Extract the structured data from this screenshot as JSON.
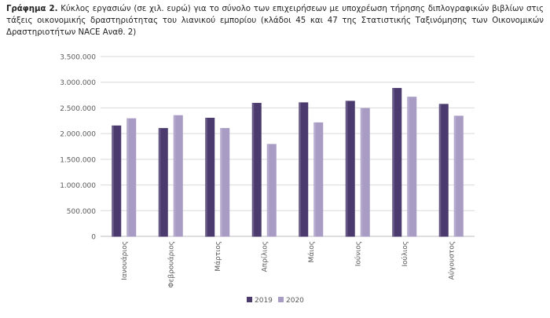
{
  "caption": {
    "label": "Γράφημα 2.",
    "text": "Κύκλος εργασιών (σε χιλ. ευρώ) για το σύνολο των επιχειρήσεων με υποχρέωση τήρησης διπλογραφικών βιβλίων στις τάξεις οικονομικής δραστηριότητας του λιανικού εμπορίου (κλάδοι 45 και 47 της Στατιστικής Ταξινόμησης των Οικονομικών Δραστηριοτήτων NACE Αναθ. 2)"
  },
  "chart_data": {
    "type": "bar",
    "categories": [
      "Ιανουάριος",
      "Φεβρουάριος",
      "Μάρτιος",
      "Απρίλιος",
      "Μάιος",
      "Ιούνιος",
      "Ιούλιος",
      "Αύγουστος"
    ],
    "series": [
      {
        "name": "2019",
        "color": "#4b3a6e",
        "values": [
          2150000,
          2100000,
          2300000,
          2590000,
          2600000,
          2630000,
          2880000,
          2570000
        ]
      },
      {
        "name": "2020",
        "color": "#a89bc4",
        "values": [
          2290000,
          2350000,
          2100000,
          1790000,
          2210000,
          2490000,
          2710000,
          2340000
        ]
      }
    ],
    "yticks": [
      "0",
      "500.000",
      "1.000.000",
      "1.500.000",
      "2.000.000",
      "2.500.000",
      "3.000.000",
      "3.500.000"
    ],
    "ylim": [
      0,
      3500000
    ],
    "grid": true,
    "legend_position": "bottom"
  }
}
